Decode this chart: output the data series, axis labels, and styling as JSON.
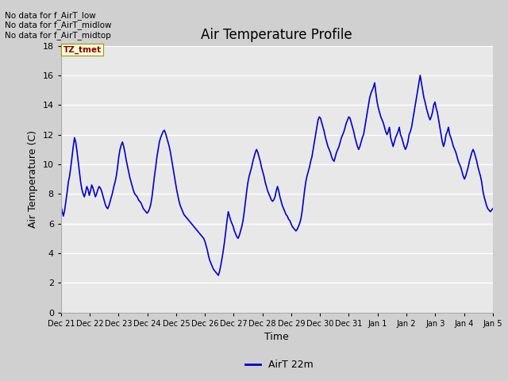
{
  "title": "Air Temperature Profile",
  "xlabel": "Time",
  "ylabel": "Air Temperature (C)",
  "legend_label": "AirT 22m",
  "no_data_texts": [
    "No data for f_AirT_low",
    "No data for f_AirT_midlow",
    "No data for f_AirT_midtop"
  ],
  "tz_label": "TZ_tmet",
  "ylim": [
    0,
    18
  ],
  "yticks": [
    0,
    2,
    4,
    6,
    8,
    10,
    12,
    14,
    16,
    18
  ],
  "line_color": "#0000cc",
  "line_width": 1.2,
  "title_fontsize": 12,
  "axis_fontsize": 9,
  "tick_fontsize": 8,
  "x_tick_labels": [
    "Dec 21",
    "Dec 22",
    "Dec 23",
    "Dec 24",
    "Dec 25",
    "Dec 26",
    "Dec 27",
    "Dec 28",
    "Dec 29",
    "Dec 30",
    "Dec 31",
    "Jan 1",
    "Jan 2",
    "Jan 3",
    "Jan 4",
    "Jan 5"
  ],
  "temperatures": [
    7.2,
    6.8,
    6.5,
    6.9,
    7.5,
    8.1,
    8.8,
    9.2,
    9.8,
    10.5,
    11.2,
    11.8,
    11.5,
    10.9,
    10.2,
    9.5,
    8.8,
    8.3,
    8.0,
    7.8,
    8.1,
    8.5,
    8.3,
    7.9,
    8.2,
    8.6,
    8.4,
    8.1,
    7.8,
    8.0,
    8.3,
    8.5,
    8.4,
    8.2,
    7.9,
    7.6,
    7.3,
    7.1,
    7.0,
    7.2,
    7.5,
    7.8,
    8.1,
    8.5,
    8.8,
    9.2,
    9.8,
    10.5,
    11.0,
    11.3,
    11.5,
    11.2,
    10.8,
    10.3,
    9.9,
    9.5,
    9.1,
    8.8,
    8.5,
    8.2,
    8.0,
    7.9,
    7.8,
    7.6,
    7.5,
    7.4,
    7.2,
    7.0,
    6.9,
    6.8,
    6.7,
    6.8,
    7.0,
    7.3,
    7.8,
    8.5,
    9.2,
    9.8,
    10.5,
    11.0,
    11.5,
    11.8,
    12.0,
    12.2,
    12.3,
    12.1,
    11.8,
    11.5,
    11.2,
    10.8,
    10.3,
    9.8,
    9.3,
    8.8,
    8.3,
    7.9,
    7.5,
    7.2,
    7.0,
    6.8,
    6.6,
    6.5,
    6.4,
    6.3,
    6.2,
    6.1,
    6.0,
    5.9,
    5.8,
    5.7,
    5.6,
    5.5,
    5.4,
    5.3,
    5.2,
    5.1,
    5.0,
    4.8,
    4.5,
    4.2,
    3.8,
    3.5,
    3.3,
    3.1,
    2.9,
    2.8,
    2.7,
    2.6,
    2.5,
    2.8,
    3.2,
    3.7,
    4.2,
    4.8,
    5.5,
    6.2,
    6.8,
    6.5,
    6.2,
    6.0,
    5.8,
    5.5,
    5.3,
    5.1,
    5.0,
    5.2,
    5.5,
    5.8,
    6.2,
    6.8,
    7.5,
    8.2,
    8.8,
    9.2,
    9.5,
    9.8,
    10.2,
    10.5,
    10.8,
    11.0,
    10.8,
    10.5,
    10.2,
    9.8,
    9.5,
    9.2,
    8.8,
    8.5,
    8.2,
    8.0,
    7.8,
    7.6,
    7.5,
    7.6,
    7.8,
    8.2,
    8.5,
    8.2,
    7.8,
    7.5,
    7.2,
    7.0,
    6.8,
    6.6,
    6.5,
    6.3,
    6.2,
    6.0,
    5.8,
    5.7,
    5.6,
    5.5,
    5.6,
    5.8,
    6.0,
    6.3,
    6.8,
    7.5,
    8.2,
    8.8,
    9.2,
    9.5,
    9.8,
    10.2,
    10.5,
    11.0,
    11.5,
    12.0,
    12.5,
    13.0,
    13.2,
    13.1,
    12.8,
    12.5,
    12.2,
    11.8,
    11.5,
    11.2,
    11.0,
    10.8,
    10.5,
    10.3,
    10.2,
    10.5,
    10.8,
    11.0,
    11.2,
    11.5,
    11.8,
    12.0,
    12.2,
    12.5,
    12.8,
    13.0,
    13.2,
    13.1,
    12.8,
    12.5,
    12.2,
    11.8,
    11.5,
    11.2,
    11.0,
    11.2,
    11.5,
    11.8,
    12.0,
    12.5,
    13.0,
    13.5,
    14.0,
    14.5,
    14.8,
    15.0,
    15.2,
    15.5,
    14.8,
    14.2,
    13.8,
    13.5,
    13.2,
    13.0,
    12.8,
    12.5,
    12.2,
    12.0,
    12.2,
    12.5,
    11.8,
    11.5,
    11.2,
    11.5,
    11.8,
    12.0,
    12.2,
    12.5,
    12.0,
    11.8,
    11.5,
    11.2,
    11.0,
    11.2,
    11.5,
    12.0,
    12.2,
    12.5,
    13.0,
    13.5,
    14.0,
    14.5,
    15.0,
    15.5,
    16.0,
    15.5,
    15.0,
    14.5,
    14.2,
    13.8,
    13.5,
    13.2,
    13.0,
    13.2,
    13.5,
    14.0,
    14.2,
    13.8,
    13.5,
    13.0,
    12.5,
    12.0,
    11.5,
    11.2,
    11.5,
    12.0,
    12.2,
    12.5,
    12.0,
    11.8,
    11.5,
    11.2,
    11.0,
    10.8,
    10.5,
    10.2,
    10.0,
    9.8,
    9.5,
    9.2,
    9.0,
    9.2,
    9.5,
    9.8,
    10.2,
    10.5,
    10.8,
    11.0,
    10.8,
    10.5,
    10.2,
    9.8,
    9.5,
    9.2,
    8.8,
    8.2,
    7.8,
    7.5,
    7.2,
    7.0,
    6.9,
    6.8,
    6.9,
    7.0
  ]
}
